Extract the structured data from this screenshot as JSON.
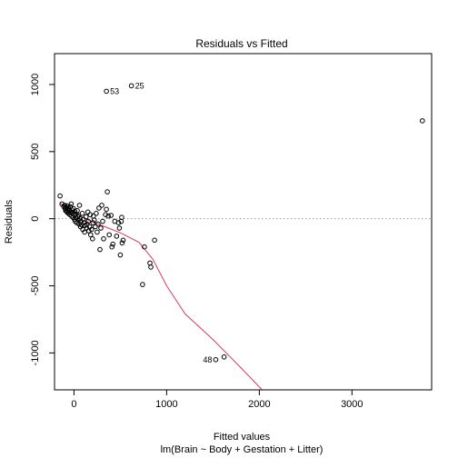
{
  "chart_data": {
    "type": "scatter",
    "title": "Residuals vs Fitted",
    "xlabel": "Fitted values",
    "xlabel2": "lm(Brain ~ Body + Gestation + Litter)",
    "ylabel": "Residuals",
    "xlim": [
      -210,
      3860
    ],
    "ylim": [
      -1275,
      1230
    ],
    "xticks": [
      0,
      1000,
      2000,
      3000
    ],
    "yticks": [
      -1000,
      -500,
      0,
      500,
      1000
    ],
    "reference_line": {
      "y": 0,
      "style": "dotted",
      "color": "#999999"
    },
    "point_color": "#000000",
    "smoother_color": "#d63c63",
    "points": [
      [
        -150,
        170
      ],
      [
        -130,
        110
      ],
      [
        -110,
        90
      ],
      [
        -100,
        100
      ],
      [
        -95,
        75
      ],
      [
        -90,
        60
      ],
      [
        -85,
        85
      ],
      [
        -80,
        55
      ],
      [
        -75,
        95
      ],
      [
        -70,
        45
      ],
      [
        -65,
        70
      ],
      [
        -60,
        80
      ],
      [
        -55,
        40
      ],
      [
        -50,
        60
      ],
      [
        -45,
        30
      ],
      [
        -40,
        90
      ],
      [
        -35,
        50
      ],
      [
        -30,
        110
      ],
      [
        -25,
        20
      ],
      [
        -20,
        65
      ],
      [
        -15,
        40
      ],
      [
        -10,
        10
      ],
      [
        -5,
        75
      ],
      [
        0,
        30
      ],
      [
        5,
        -5
      ],
      [
        10,
        55
      ],
      [
        15,
        -20
      ],
      [
        20,
        35
      ],
      [
        25,
        5
      ],
      [
        30,
        -30
      ],
      [
        35,
        60
      ],
      [
        40,
        15
      ],
      [
        45,
        -10
      ],
      [
        50,
        25
      ],
      [
        55,
        -40
      ],
      [
        60,
        100
      ],
      [
        65,
        0
      ],
      [
        70,
        -60
      ],
      [
        75,
        -20
      ],
      [
        80,
        -45
      ],
      [
        90,
        40
      ],
      [
        95,
        -80
      ],
      [
        100,
        -5
      ],
      [
        110,
        -30
      ],
      [
        115,
        -100
      ],
      [
        120,
        -50
      ],
      [
        130,
        15
      ],
      [
        135,
        -70
      ],
      [
        140,
        -40
      ],
      [
        150,
        50
      ],
      [
        155,
        -20
      ],
      [
        160,
        -90
      ],
      [
        170,
        -60
      ],
      [
        175,
        30
      ],
      [
        180,
        -120
      ],
      [
        190,
        -80
      ],
      [
        200,
        -150
      ],
      [
        205,
        -30
      ],
      [
        210,
        20
      ],
      [
        220,
        -10
      ],
      [
        230,
        -60
      ],
      [
        240,
        40
      ],
      [
        250,
        -100
      ],
      [
        260,
        -40
      ],
      [
        270,
        80
      ],
      [
        280,
        -230
      ],
      [
        290,
        -70
      ],
      [
        300,
        100
      ],
      [
        310,
        -20
      ],
      [
        320,
        -150
      ],
      [
        340,
        30
      ],
      [
        350,
        70
      ],
      [
        360,
        200
      ],
      [
        370,
        20
      ],
      [
        380,
        -120
      ],
      [
        400,
        25
      ],
      [
        410,
        -210
      ],
      [
        420,
        -190
      ],
      [
        440,
        -20
      ],
      [
        460,
        -130
      ],
      [
        480,
        -30
      ],
      [
        490,
        -70
      ],
      [
        500,
        -270
      ],
      [
        510,
        -20
      ],
      [
        515,
        10
      ],
      [
        520,
        -180
      ],
      [
        530,
        -160
      ],
      [
        740,
        -490
      ],
      [
        760,
        -210
      ],
      [
        820,
        -330
      ],
      [
        830,
        -360
      ],
      [
        870,
        -160
      ],
      [
        1620,
        -1030
      ]
    ],
    "labeled_points": [
      {
        "label": "53",
        "x": 350,
        "y": 950
      },
      {
        "label": "25",
        "x": 620,
        "y": 990
      },
      {
        "label": "48",
        "x": 1530,
        "y": -1050
      }
    ],
    "outlier_points": [
      [
        350,
        950
      ],
      [
        620,
        990
      ],
      [
        3760,
        730
      ],
      [
        1530,
        -1050
      ]
    ],
    "smoother": [
      [
        -150,
        115
      ],
      [
        0,
        50
      ],
      [
        150,
        -10
      ],
      [
        300,
        -50
      ],
      [
        500,
        -105
      ],
      [
        700,
        -175
      ],
      [
        850,
        -300
      ],
      [
        1000,
        -500
      ],
      [
        1200,
        -710
      ],
      [
        1500,
        -900
      ],
      [
        1800,
        -1110
      ],
      [
        2030,
        -1275
      ]
    ]
  }
}
